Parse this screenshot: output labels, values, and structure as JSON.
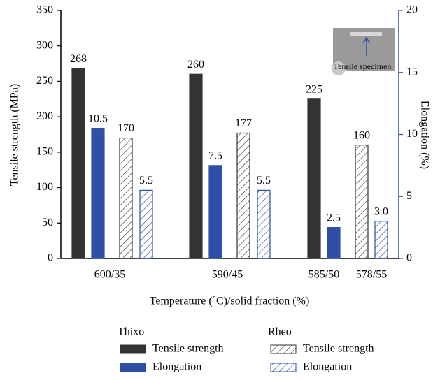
{
  "chart_data": {
    "type": "bar",
    "categories": [
      "600/35",
      "590/45",
      "585/50",
      "578/55"
    ],
    "x_label": "Temperature (˚C)/solid fraction (%)",
    "y_label": "Tensile strength (MPa)",
    "y2_label": "Elongation (%)",
    "ylim": [
      0,
      350
    ],
    "yticks": [
      0,
      50,
      100,
      150,
      200,
      250,
      300,
      350
    ],
    "y2lim": [
      0,
      20
    ],
    "y2ticks": [
      0,
      5,
      10,
      15,
      20
    ],
    "y2_color": "#2f4fa6",
    "annotations": [
      "Tensile specimen"
    ],
    "series_groups": [
      {
        "name": "Thixo",
        "series": [
          {
            "name": "Tensile strength",
            "color": "#333333",
            "pattern": "solid",
            "values": [
              268,
              260,
              225,
              null
            ]
          },
          {
            "name": "Elongation",
            "color": "#2f4fa6",
            "pattern": "solid",
            "axis": "y2",
            "values": [
              10.5,
              7.5,
              2.5,
              null
            ]
          }
        ]
      },
      {
        "name": "Rheo",
        "series": [
          {
            "name": "Tensile strength",
            "color": "#333333",
            "pattern": "hatch",
            "values": [
              170,
              177,
              null,
              160
            ]
          },
          {
            "name": "Elongation",
            "color": "#2f4fa6",
            "pattern": "hatch",
            "axis": "y2",
            "values": [
              5.5,
              5.5,
              null,
              3.0
            ],
            "value_labels": [
              "5.5",
              "5.5",
              null,
              "3.0"
            ]
          }
        ]
      }
    ]
  }
}
